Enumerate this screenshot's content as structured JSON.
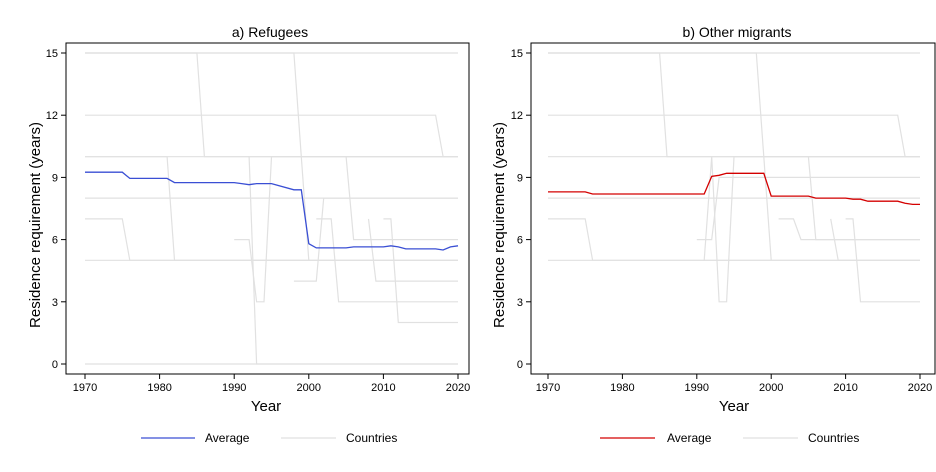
{
  "chart_data": [
    {
      "type": "line",
      "title": "a) Refugees",
      "xlabel": "Year",
      "ylabel": "Residence requirement (years)",
      "xlim": [
        1970,
        2020
      ],
      "ylim": [
        0,
        15
      ],
      "xticks": [
        "1970",
        "1980",
        "1990",
        "2000",
        "2010",
        "2020"
      ],
      "yticks": [
        "0",
        "3",
        "6",
        "9",
        "12",
        "15"
      ],
      "grid": false,
      "legend_position": "bottom",
      "legend": [
        "Average",
        "Countries"
      ],
      "average_color": "#3a4fd4",
      "country_color": "#e1e1e1",
      "series": [
        {
          "name": "Average",
          "x": [
            1970,
            1975,
            1976,
            1981,
            1982,
            1988,
            1990,
            1991,
            1992,
            1993,
            1995,
            1998,
            1999,
            2000,
            2001,
            2005,
            2006,
            2010,
            2011,
            2012,
            2013,
            2017,
            2018,
            2019,
            2020
          ],
          "y": [
            9.25,
            9.25,
            8.95,
            8.95,
            8.75,
            8.75,
            8.75,
            8.7,
            8.65,
            8.7,
            8.7,
            8.4,
            8.4,
            5.8,
            5.6,
            5.6,
            5.65,
            5.65,
            5.7,
            5.65,
            5.55,
            5.55,
            5.5,
            5.65,
            5.7
          ]
        },
        {
          "name": "Countries",
          "x": [
            1970,
            2020
          ],
          "y": [
            15,
            15
          ]
        },
        {
          "name": "Countries",
          "x": [
            1970,
            1985,
            1986,
            2020
          ],
          "y": [
            15,
            15,
            10,
            10
          ]
        },
        {
          "name": "Countries",
          "x": [
            1970,
            1998,
            1999,
            2000
          ],
          "y": [
            15,
            15,
            10,
            5
          ]
        },
        {
          "name": "Countries",
          "x": [
            1970,
            2017,
            2018,
            2020
          ],
          "y": [
            12,
            12,
            10,
            10
          ]
        },
        {
          "name": "Countries",
          "x": [
            1970,
            2020
          ],
          "y": [
            10,
            10
          ]
        },
        {
          "name": "Countries",
          "x": [
            1970,
            1981,
            1982,
            2020
          ],
          "y": [
            10,
            10,
            5,
            5
          ]
        },
        {
          "name": "Countries",
          "x": [
            1970,
            2020
          ],
          "y": [
            8,
            8
          ]
        },
        {
          "name": "Countries",
          "x": [
            1970,
            1975,
            1976,
            2020
          ],
          "y": [
            7,
            7,
            5,
            5
          ]
        },
        {
          "name": "Countries",
          "x": [
            1970,
            2020
          ],
          "y": [
            5,
            5
          ]
        },
        {
          "name": "Countries",
          "x": [
            1970,
            2020
          ],
          "y": [
            0,
            0
          ]
        },
        {
          "name": "Countries",
          "x": [
            1990,
            1992,
            1993,
            1994,
            1995,
            2020
          ],
          "y": [
            6,
            6,
            3,
            3,
            10,
            10
          ]
        },
        {
          "name": "Countries",
          "x": [
            1992,
            1993,
            2020
          ],
          "y": [
            10,
            0,
            0
          ]
        },
        {
          "name": "Countries",
          "x": [
            1998,
            2001,
            2002,
            2020
          ],
          "y": [
            4,
            4,
            8,
            8
          ]
        },
        {
          "name": "Countries",
          "x": [
            2001,
            2003,
            2004,
            2020
          ],
          "y": [
            7,
            7,
            3,
            3
          ]
        },
        {
          "name": "Countries",
          "x": [
            2005,
            2006,
            2020
          ],
          "y": [
            10,
            6,
            6
          ]
        },
        {
          "name": "Countries",
          "x": [
            2010,
            2011,
            2012,
            2020
          ],
          "y": [
            7,
            7,
            2,
            2
          ]
        },
        {
          "name": "Countries",
          "x": [
            2008,
            2009,
            2020
          ],
          "y": [
            7,
            4,
            4
          ]
        }
      ]
    },
    {
      "type": "line",
      "title": "b) Other migrants",
      "xlabel": "Year",
      "ylabel": "Residence requirement (years)",
      "xlim": [
        1970,
        2020
      ],
      "ylim": [
        0,
        15
      ],
      "xticks": [
        "1970",
        "1980",
        "1990",
        "2000",
        "2010",
        "2020"
      ],
      "yticks": [
        "0",
        "3",
        "6",
        "9",
        "12",
        "15"
      ],
      "grid": false,
      "legend_position": "bottom",
      "legend": [
        "Average",
        "Countries"
      ],
      "average_color": "#d40000",
      "country_color": "#e1e1e1",
      "series": [
        {
          "name": "Average",
          "x": [
            1970,
            1975,
            1976,
            1991,
            1992,
            1993,
            1994,
            1999,
            2000,
            2005,
            2006,
            2010,
            2011,
            2012,
            2013,
            2017,
            2018,
            2019,
            2020
          ],
          "y": [
            8.3,
            8.3,
            8.2,
            8.2,
            9.05,
            9.1,
            9.2,
            9.2,
            8.1,
            8.1,
            8.0,
            8.0,
            7.95,
            7.95,
            7.85,
            7.85,
            7.75,
            7.7,
            7.7
          ]
        },
        {
          "name": "Countries",
          "x": [
            1970,
            2020
          ],
          "y": [
            15,
            15
          ]
        },
        {
          "name": "Countries",
          "x": [
            1970,
            1985,
            1986,
            2020
          ],
          "y": [
            15,
            15,
            10,
            10
          ]
        },
        {
          "name": "Countries",
          "x": [
            1970,
            1998,
            1999,
            2000
          ],
          "y": [
            15,
            15,
            10,
            5
          ]
        },
        {
          "name": "Countries",
          "x": [
            1970,
            2017,
            2018,
            2020
          ],
          "y": [
            12,
            12,
            10,
            10
          ]
        },
        {
          "name": "Countries",
          "x": [
            1970,
            2020
          ],
          "y": [
            10,
            10
          ]
        },
        {
          "name": "Countries",
          "x": [
            1970,
            2020
          ],
          "y": [
            8,
            8
          ]
        },
        {
          "name": "Countries",
          "x": [
            1970,
            1975,
            1976,
            2020
          ],
          "y": [
            7,
            7,
            5,
            5
          ]
        },
        {
          "name": "Countries",
          "x": [
            1970,
            2020
          ],
          "y": [
            5,
            5
          ]
        },
        {
          "name": "Countries",
          "x": [
            1990,
            1992,
            1993,
            2020
          ],
          "y": [
            6,
            6,
            9,
            9
          ]
        },
        {
          "name": "Countries",
          "x": [
            1991,
            1992,
            1993,
            1994,
            1995,
            2020
          ],
          "y": [
            5,
            10,
            3,
            3,
            10,
            10
          ]
        },
        {
          "name": "Countries",
          "x": [
            2001,
            2003,
            2004,
            2020
          ],
          "y": [
            7,
            7,
            6,
            6
          ]
        },
        {
          "name": "Countries",
          "x": [
            2005,
            2006,
            2020
          ],
          "y": [
            10,
            6,
            6
          ]
        },
        {
          "name": "Countries",
          "x": [
            2010,
            2011,
            2012,
            2020
          ],
          "y": [
            7,
            7,
            3,
            3
          ]
        },
        {
          "name": "Countries",
          "x": [
            2008,
            2009,
            2020
          ],
          "y": [
            7,
            5,
            5
          ]
        }
      ]
    }
  ]
}
